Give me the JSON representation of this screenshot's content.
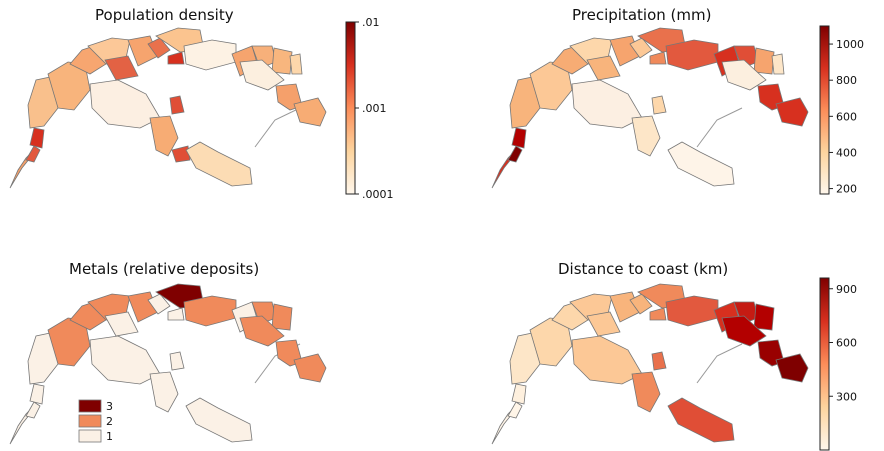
{
  "panels": [
    {
      "id": "population",
      "title": "Population density",
      "scale": "log",
      "ticks": [
        ".01",
        ".001",
        ".0001"
      ],
      "tick_values": [
        0.01,
        0.001,
        0.0001
      ],
      "range": [
        0.0001,
        0.01
      ]
    },
    {
      "id": "precipitation",
      "title": "Precipitation (mm)",
      "scale": "linear",
      "ticks": [
        "1000",
        "800",
        "600",
        "400",
        "200"
      ],
      "tick_values": [
        1000,
        800,
        600,
        400,
        200
      ],
      "range": [
        170,
        1100
      ]
    },
    {
      "id": "metals",
      "title": "Metals (relative deposits)",
      "scale": "categorical",
      "legend": [
        {
          "label": "3",
          "color": "#7f0000"
        },
        {
          "label": "2",
          "color": "#f08a5b"
        },
        {
          "label": "1",
          "color": "#fbf1e6"
        }
      ]
    },
    {
      "id": "distance",
      "title": "Distance to coast (km)",
      "scale": "linear",
      "ticks": [
        "900",
        "600",
        "300"
      ],
      "tick_values": [
        900,
        600,
        300
      ],
      "range": [
        0,
        960
      ]
    }
  ],
  "colormap": [
    "#fff7ec",
    "#fdd49e",
    "#fc8d59",
    "#d7301f",
    "#7f0000"
  ]
}
